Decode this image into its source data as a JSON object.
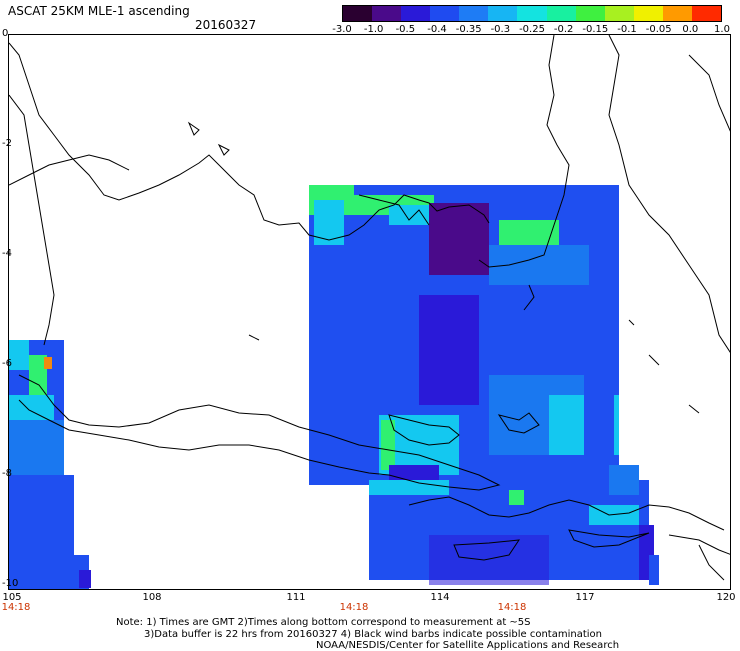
{
  "header": {
    "title": "ASCAT 25KM MLE-1 ascending",
    "date": "20160327"
  },
  "colorbar": {
    "labels": [
      "-3.0",
      "-1.0",
      "-0.5",
      "-0.4",
      "-0.35",
      "-0.3",
      "-0.25",
      "-0.2",
      "-0.15",
      "-0.1",
      "-0.05",
      "0.0",
      "1.0"
    ],
    "colors": [
      "#2a0030",
      "#4a0a8a",
      "#2a1ad8",
      "#1f4bf0",
      "#1e7cf5",
      "#17b5f3",
      "#14e3e0",
      "#18f0a0",
      "#3ff040",
      "#a8f020",
      "#f0f000",
      "#ff9a00",
      "#ff2a00"
    ]
  },
  "map": {
    "y_ticks": [
      "0",
      "-2",
      "-4",
      "-6",
      "-8",
      "-10"
    ],
    "x_ticks": [
      "105",
      "108",
      "111",
      "114",
      "117",
      "120"
    ],
    "pass_times": [
      "14:18",
      "14:18",
      "14:18"
    ],
    "colors": {
      "land_outline": "#000000",
      "deep": "#3a10b8",
      "blue": "#1f4ff0",
      "mid": "#1a78f0",
      "cyan": "#14c8f0",
      "green": "#30f070"
    }
  },
  "footer": {
    "note_line1": "Note: 1) Times are GMT 2)Times along bottom correspond to measurement at ~5S",
    "note_line2": "3)Data buffer is 22 hrs from 20160327 4) Black wind barbs indicate possible contamination",
    "credit": "NOAA/NESDIS/Center for Satellite Applications and Research"
  }
}
